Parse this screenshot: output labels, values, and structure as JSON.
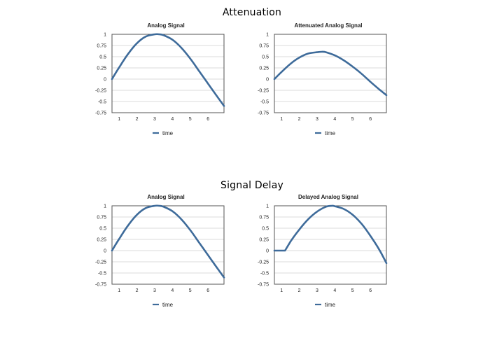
{
  "page": {
    "section_top_title": "Attenuation",
    "section_bottom_title": "Signal Delay"
  },
  "colors": {
    "series": "#3e6b9a"
  },
  "chart_data": [
    {
      "type": "line",
      "title": "Analog Signal",
      "xlabel": "",
      "ylabel": "",
      "xlim": [
        0.6,
        6.9
      ],
      "ylim": [
        -0.75,
        1
      ],
      "x_ticks": [
        "1",
        "2",
        "3",
        "4",
        "5",
        "6"
      ],
      "y_ticks": [
        "1",
        "0.75",
        "0.5",
        "0.25",
        "0",
        "-0.25",
        "-0.5",
        "-0.75"
      ],
      "series": [
        {
          "name": "time",
          "x": [
            0.6,
            1.0,
            1.5,
            2.0,
            2.5,
            3.0,
            3.25,
            3.5,
            4.0,
            4.5,
            5.0,
            5.5,
            6.0,
            6.5,
            6.9
          ],
          "y": [
            0.0,
            0.26,
            0.56,
            0.8,
            0.95,
            1.0,
            1.0,
            0.98,
            0.88,
            0.7,
            0.46,
            0.18,
            -0.1,
            -0.38,
            -0.6
          ]
        }
      ],
      "grid": true,
      "legend": "bottom"
    },
    {
      "type": "line",
      "title": "Attenuated Analog Signal",
      "xlabel": "",
      "ylabel": "",
      "xlim": [
        0.6,
        6.9
      ],
      "ylim": [
        -0.75,
        1
      ],
      "x_ticks": [
        "1",
        "2",
        "3",
        "4",
        "5",
        "6"
      ],
      "y_ticks": [
        "1",
        "0.75",
        "0.5",
        "0.25",
        "0",
        "-0.25",
        "-0.5",
        "-0.75"
      ],
      "series": [
        {
          "name": "time",
          "x": [
            0.6,
            1.0,
            1.5,
            2.0,
            2.5,
            3.0,
            3.25,
            3.5,
            4.0,
            4.5,
            5.0,
            5.5,
            6.0,
            6.5,
            6.9
          ],
          "y": [
            0.0,
            0.16,
            0.34,
            0.48,
            0.57,
            0.6,
            0.61,
            0.6,
            0.53,
            0.42,
            0.28,
            0.12,
            -0.06,
            -0.23,
            -0.36
          ]
        }
      ],
      "grid": true,
      "legend": "bottom"
    },
    {
      "type": "line",
      "title": "Analog Signal",
      "xlabel": "",
      "ylabel": "",
      "xlim": [
        0.6,
        6.9
      ],
      "ylim": [
        -0.75,
        1
      ],
      "x_ticks": [
        "1",
        "2",
        "3",
        "4",
        "5",
        "6"
      ],
      "y_ticks": [
        "1",
        "0.75",
        "0.5",
        "0.25",
        "0",
        "-0.25",
        "-0.5",
        "-0.75"
      ],
      "series": [
        {
          "name": "time",
          "x": [
            0.6,
            1.0,
            1.5,
            2.0,
            2.5,
            3.0,
            3.25,
            3.5,
            4.0,
            4.5,
            5.0,
            5.5,
            6.0,
            6.5,
            6.9
          ],
          "y": [
            0.0,
            0.26,
            0.56,
            0.8,
            0.95,
            1.0,
            1.0,
            0.98,
            0.88,
            0.7,
            0.46,
            0.18,
            -0.1,
            -0.38,
            -0.6
          ]
        }
      ],
      "grid": true,
      "legend": "bottom"
    },
    {
      "type": "line",
      "title": "Delayed Analog Signal",
      "xlabel": "",
      "ylabel": "",
      "xlim": [
        0.6,
        6.9
      ],
      "ylim": [
        -0.75,
        1
      ],
      "x_ticks": [
        "1",
        "2",
        "3",
        "4",
        "5",
        "6"
      ],
      "y_ticks": [
        "1",
        "0.75",
        "0.5",
        "0.25",
        "0",
        "-0.25",
        "-0.5",
        "-0.75"
      ],
      "series": [
        {
          "name": "time",
          "x": [
            0.6,
            1.2,
            1.5,
            2.0,
            2.5,
            3.0,
            3.5,
            3.85,
            4.0,
            4.5,
            5.0,
            5.5,
            6.0,
            6.5,
            6.9
          ],
          "y": [
            0.0,
            0.0,
            0.2,
            0.47,
            0.7,
            0.87,
            0.98,
            1.0,
            0.99,
            0.93,
            0.8,
            0.6,
            0.33,
            0.02,
            -0.28
          ]
        }
      ],
      "grid": true,
      "legend": "bottom"
    }
  ]
}
